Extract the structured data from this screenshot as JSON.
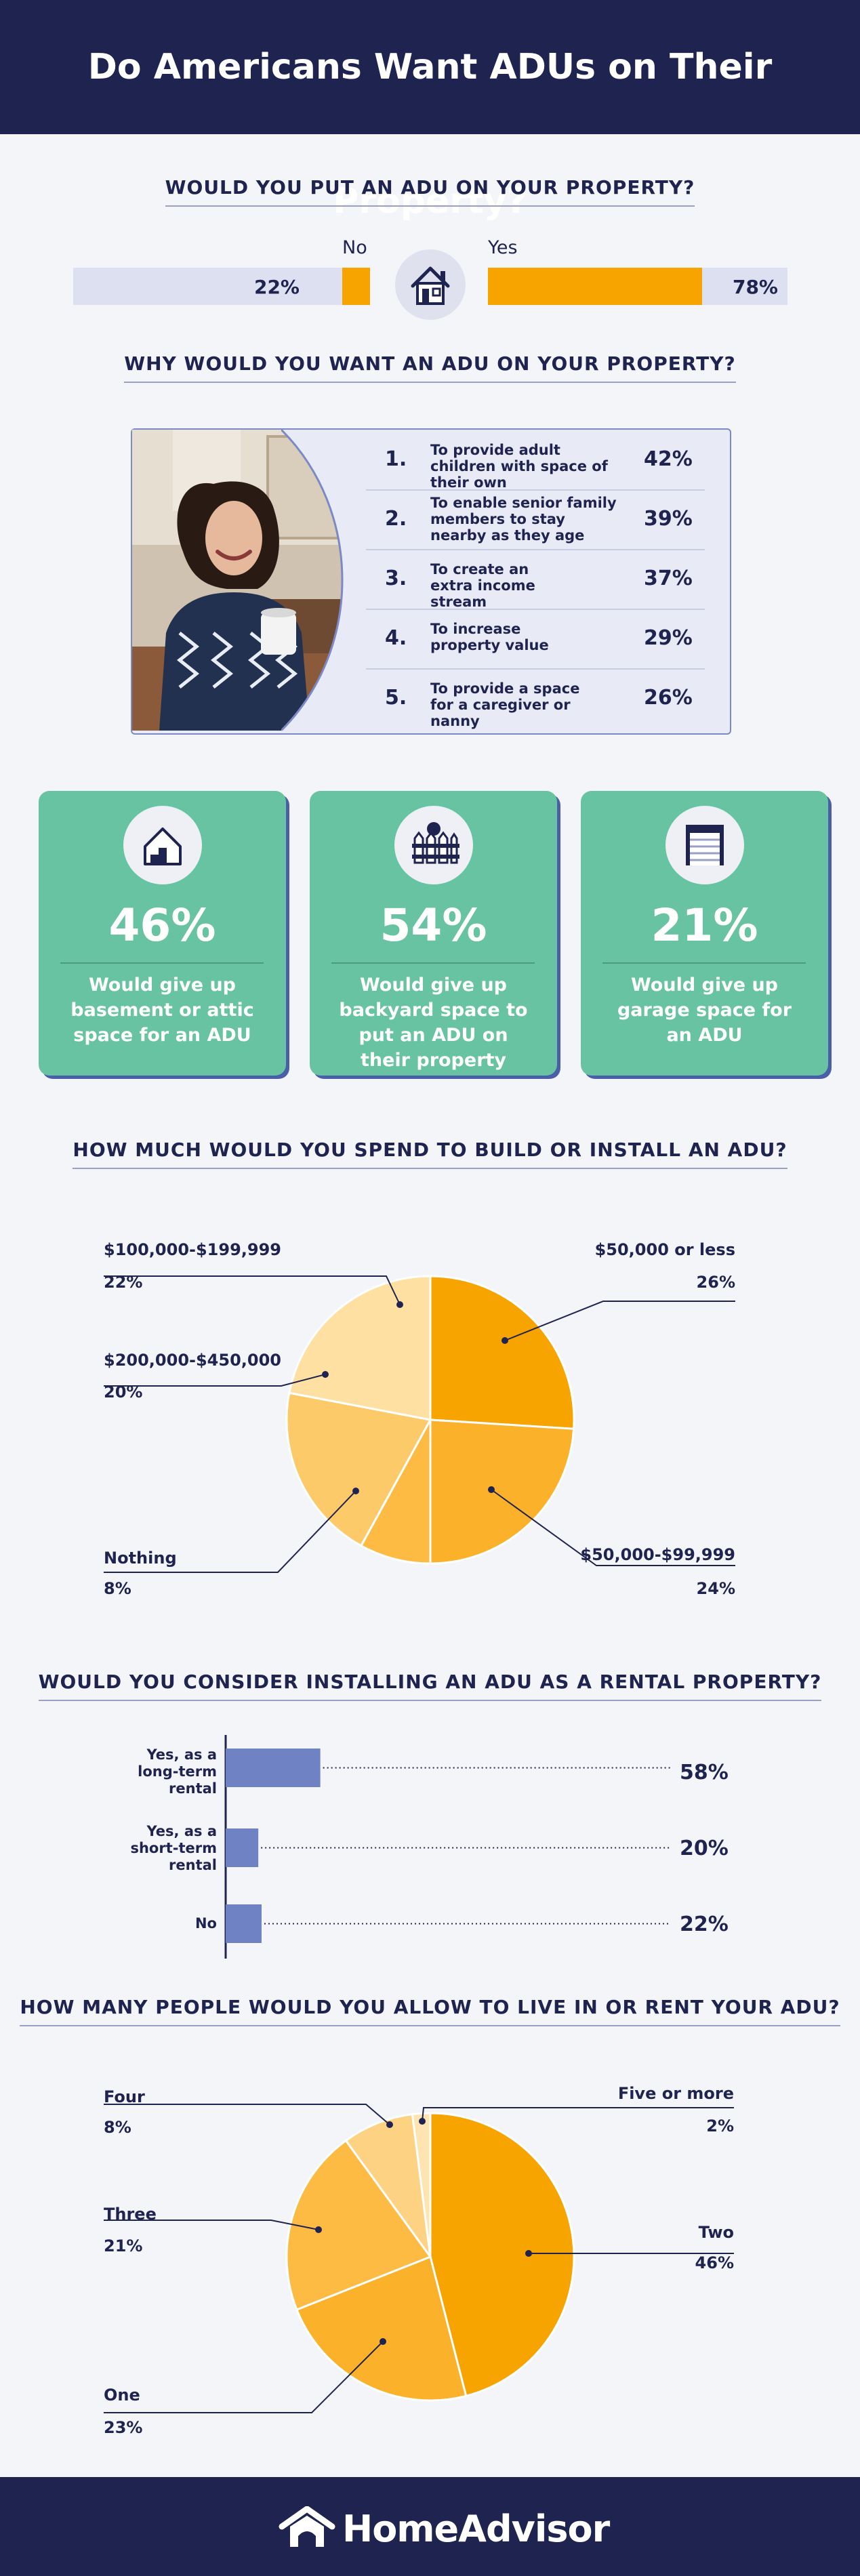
{
  "header": {
    "title": "Do Americans Want ADUs on Their Property?"
  },
  "footer": {
    "brand": "HomeAdvisor"
  },
  "q1": {
    "title": "WOULD YOU PUT AN ADU ON YOUR PROPERTY?",
    "icon": "house-icon",
    "no": {
      "label": "No",
      "pct": "22%",
      "value": 22
    },
    "yes": {
      "label": "Yes",
      "pct": "78%",
      "value": 78
    }
  },
  "q2": {
    "title": "WHY WOULD YOU WANT AN ADU ON YOUR PROPERTY?",
    "photo": "woman-with-mug-photo",
    "items": [
      {
        "num": "1.",
        "text": "To provide adult children with space of their own",
        "pct": "42%"
      },
      {
        "num": "2.",
        "text": "To enable senior family members to stay nearby as they age",
        "pct": "39%"
      },
      {
        "num": "3.",
        "text": "To create an extra income stream",
        "pct": "37%"
      },
      {
        "num": "4.",
        "text": "To increase property value",
        "pct": "29%"
      },
      {
        "num": "5.",
        "text": "To provide a space for a caregiver or nanny",
        "pct": "26%"
      }
    ]
  },
  "cards": [
    {
      "icon": "basement-house-icon",
      "pct": "46%",
      "text": "Would give up basement or attic space for an ADU"
    },
    {
      "icon": "backyard-fence-icon",
      "pct": "54%",
      "text": "Would give up backyard space to put an ADU on their property"
    },
    {
      "icon": "garage-door-icon",
      "pct": "21%",
      "text": "Would give up garage space for an ADU"
    }
  ],
  "chart_data": [
    {
      "type": "pie",
      "title": "HOW MUCH WOULD YOU SPEND TO BUILD OR INSTALL AN ADU?",
      "slices": [
        {
          "label": "$50,000 or less",
          "value": 26,
          "pct": "26%",
          "color": "#f7a400"
        },
        {
          "label": "$50,000-$99,999",
          "value": 24,
          "pct": "24%",
          "color": "#fbb12a"
        },
        {
          "label": "Nothing",
          "value": 8,
          "pct": "8%",
          "color": "#fdbb44"
        },
        {
          "label": "$200,000-$450,000",
          "value": 20,
          "pct": "20%",
          "color": "#fdca6a"
        },
        {
          "label": "$100,000-$199,999",
          "value": 22,
          "pct": "22%",
          "color": "#fde0a2"
        }
      ]
    },
    {
      "type": "bar",
      "title": "WOULD YOU CONSIDER INSTALLING AN ADU AS A RENTAL PROPERTY?",
      "categories": [
        "Yes, as a long-term rental",
        "Yes, as a short-term rental",
        "No"
      ],
      "values": [
        58,
        20,
        22
      ],
      "pcts": [
        "58%",
        "20%",
        "22%"
      ],
      "color": "#6e82c4"
    },
    {
      "type": "pie",
      "title": "HOW MANY PEOPLE WOULD YOU ALLOW TO LIVE IN OR RENT YOUR ADU?",
      "slices": [
        {
          "label": "Two",
          "value": 46,
          "pct": "46%",
          "color": "#f7a400"
        },
        {
          "label": "One",
          "value": 23,
          "pct": "23%",
          "color": "#fbb12a"
        },
        {
          "label": "Three",
          "value": 21,
          "pct": "21%",
          "color": "#fdbb44"
        },
        {
          "label": "Four",
          "value": 8,
          "pct": "8%",
          "color": "#fdd283"
        },
        {
          "label": "Five or more",
          "value": 2,
          "pct": "2%",
          "color": "#fde4b0"
        }
      ]
    }
  ]
}
